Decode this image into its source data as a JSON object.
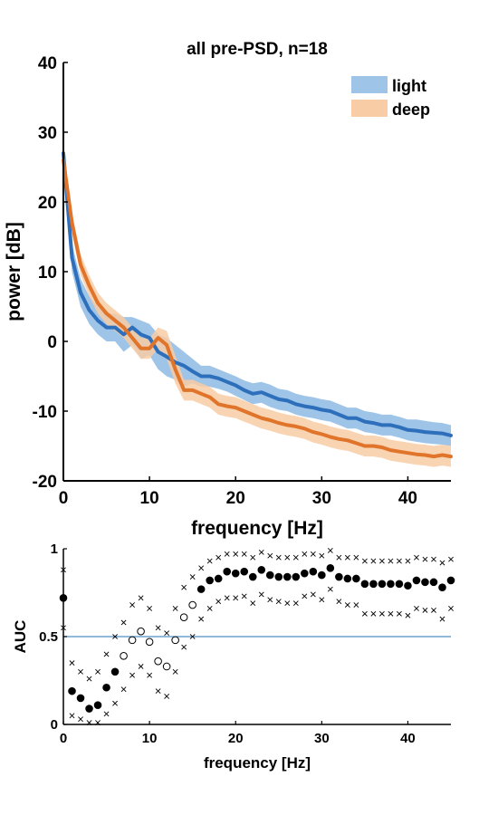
{
  "chart_data": [
    {
      "type": "line",
      "title": "all pre-PSD, n=18",
      "xlabel": "frequency [Hz]",
      "ylabel": "power [dB]",
      "xlim": [
        0,
        45
      ],
      "ylim": [
        -20,
        40
      ],
      "xticks": [
        "0",
        "10",
        "20",
        "30",
        "40"
      ],
      "yticks": [
        "-20",
        "-10",
        "0",
        "10",
        "20",
        "30",
        "40"
      ],
      "grid": false,
      "legend_position": "top-right",
      "x": [
        0,
        1,
        2,
        3,
        4,
        5,
        6,
        7,
        8,
        9,
        10,
        11,
        12,
        13,
        14,
        15,
        16,
        17,
        18,
        19,
        20,
        21,
        22,
        23,
        24,
        25,
        26,
        27,
        28,
        29,
        30,
        31,
        32,
        33,
        34,
        35,
        36,
        37,
        38,
        39,
        40,
        41,
        42,
        43,
        44,
        45
      ],
      "series": [
        {
          "name": "light",
          "line_color": "#2e6fbb",
          "band_color": "#9ec4e8",
          "values": [
            27,
            12,
            7,
            4.5,
            3,
            2,
            2,
            1,
            2,
            1,
            0.5,
            -1.5,
            -2.2,
            -3,
            -3.5,
            -4.3,
            -5,
            -5,
            -5.3,
            -5.8,
            -6.3,
            -7,
            -7.5,
            -7.3,
            -7.8,
            -8.3,
            -8.5,
            -9,
            -9.3,
            -9.5,
            -9.8,
            -10,
            -10.5,
            -11,
            -11,
            -11.5,
            -11.7,
            -12,
            -12,
            -12.3,
            -12.7,
            -12.8,
            -13,
            -13.1,
            -13.2,
            -13.5
          ],
          "upper": [
            28,
            14,
            9,
            6.5,
            5,
            4,
            4,
            3.5,
            3.5,
            3,
            2.5,
            1,
            0.5,
            -0.5,
            -1.5,
            -2.5,
            -3.5,
            -3.5,
            -4,
            -4.5,
            -5,
            -5.6,
            -6,
            -5.8,
            -6.2,
            -6.8,
            -7,
            -7.5,
            -7.8,
            -8,
            -8.3,
            -8.5,
            -9,
            -9.5,
            -9.5,
            -10,
            -10.2,
            -10.5,
            -10.5,
            -10.8,
            -11.2,
            -11.2,
            -11.4,
            -11.6,
            -11.7,
            -12
          ],
          "lower": [
            26,
            10,
            5,
            2.5,
            1,
            0,
            0,
            -1.5,
            -0.5,
            -2.5,
            -2,
            -4,
            -5,
            -5.5,
            -6.5,
            -6,
            -6.5,
            -6.5,
            -6.8,
            -7.2,
            -7.8,
            -8.4,
            -9,
            -8.8,
            -9.4,
            -9.8,
            -10,
            -10.5,
            -10.8,
            -11,
            -11.3,
            -11.5,
            -12,
            -12.5,
            -12.5,
            -13,
            -13.2,
            -13.5,
            -13.5,
            -13.8,
            -14.2,
            -14.4,
            -14.6,
            -14.7,
            -14.8,
            -15
          ]
        },
        {
          "name": "deep",
          "line_color": "#e0742a",
          "band_color": "#f8cca5",
          "values": [
            26,
            17,
            11,
            8,
            5.5,
            4,
            3,
            2,
            0.5,
            -1,
            -1,
            0.5,
            -0.5,
            -4,
            -7,
            -7,
            -7.5,
            -8,
            -9,
            -9.3,
            -9.5,
            -10,
            -10.5,
            -11,
            -11.3,
            -11.7,
            -12,
            -12.2,
            -12.5,
            -13,
            -13.3,
            -13.7,
            -14,
            -14.2,
            -14.6,
            -15,
            -15,
            -15.2,
            -15.6,
            -15.8,
            -16,
            -16.2,
            -16.3,
            -16.5,
            -16.3,
            -16.5
          ],
          "upper": [
            27,
            18.5,
            12.5,
            9.5,
            7,
            5.5,
            4.5,
            3.5,
            2,
            0.5,
            0.5,
            2,
            1.5,
            -2,
            -5.5,
            -5.5,
            -6,
            -6.5,
            -7.5,
            -7.8,
            -8,
            -8.5,
            -9,
            -9.5,
            -9.8,
            -10.2,
            -10.5,
            -10.7,
            -11,
            -11.5,
            -11.8,
            -12.2,
            -12.5,
            -12.7,
            -13.1,
            -13.5,
            -13.5,
            -13.7,
            -14.1,
            -14.3,
            -14.5,
            -14.7,
            -14.8,
            -15,
            -14.8,
            -15
          ],
          "lower": [
            25,
            15.5,
            9.5,
            6.5,
            4,
            2.5,
            1.5,
            0.5,
            -1,
            -2.5,
            -2.5,
            -1,
            -2.5,
            -6,
            -8.5,
            -8.5,
            -9,
            -9.5,
            -10.5,
            -10.8,
            -11,
            -11.5,
            -12,
            -12.5,
            -12.8,
            -13.2,
            -13.5,
            -13.7,
            -14,
            -14.5,
            -14.8,
            -15.2,
            -15.5,
            -15.7,
            -16.1,
            -16.5,
            -16.5,
            -16.7,
            -17.1,
            -17.3,
            -17.5,
            -17.7,
            -17.8,
            -18,
            -17.8,
            -18
          ]
        }
      ]
    },
    {
      "type": "scatter",
      "title": "",
      "xlabel": "frequency [Hz]",
      "ylabel": "AUC",
      "xlim": [
        0,
        45
      ],
      "ylim": [
        0,
        1
      ],
      "xticks": [
        "0",
        "10",
        "20",
        "30",
        "40"
      ],
      "yticks": [
        "0",
        "0.5",
        "1"
      ],
      "grid": false,
      "reference_line": {
        "y": 0.5,
        "color": "#4d8fc4"
      },
      "x": [
        0,
        1,
        2,
        3,
        4,
        5,
        6,
        7,
        8,
        9,
        10,
        11,
        12,
        13,
        14,
        15,
        16,
        17,
        18,
        19,
        20,
        21,
        22,
        23,
        24,
        25,
        26,
        27,
        28,
        29,
        30,
        31,
        32,
        33,
        34,
        35,
        36,
        37,
        38,
        39,
        40,
        41,
        42,
        43,
        44,
        45
      ],
      "auc": [
        0.72,
        0.19,
        0.15,
        0.09,
        0.11,
        0.21,
        0.3,
        0.39,
        0.48,
        0.53,
        0.47,
        0.36,
        0.33,
        0.48,
        0.61,
        0.68,
        0.77,
        0.82,
        0.83,
        0.87,
        0.86,
        0.87,
        0.84,
        0.88,
        0.85,
        0.84,
        0.84,
        0.84,
        0.86,
        0.87,
        0.85,
        0.89,
        0.84,
        0.83,
        0.83,
        0.8,
        0.8,
        0.8,
        0.8,
        0.8,
        0.79,
        0.82,
        0.81,
        0.81,
        0.78,
        0.82
      ],
      "significant": [
        true,
        true,
        true,
        true,
        true,
        true,
        true,
        false,
        false,
        false,
        false,
        false,
        false,
        false,
        false,
        false,
        true,
        true,
        true,
        true,
        true,
        true,
        true,
        true,
        true,
        true,
        true,
        true,
        true,
        true,
        true,
        true,
        true,
        true,
        true,
        true,
        true,
        true,
        true,
        true,
        true,
        true,
        true,
        true,
        true,
        true
      ],
      "ci_upper": [
        0.88,
        0.35,
        0.3,
        0.26,
        0.3,
        0.4,
        0.5,
        0.58,
        0.68,
        0.72,
        0.66,
        0.55,
        0.52,
        0.66,
        0.78,
        0.84,
        0.89,
        0.93,
        0.95,
        0.97,
        0.97,
        0.97,
        0.95,
        0.98,
        0.96,
        0.95,
        0.95,
        0.95,
        0.97,
        0.97,
        0.96,
        0.99,
        0.95,
        0.95,
        0.95,
        0.93,
        0.93,
        0.93,
        0.93,
        0.93,
        0.93,
        0.95,
        0.94,
        0.94,
        0.92,
        0.94
      ],
      "ci_lower": [
        0.55,
        0.05,
        0.03,
        0.01,
        0.01,
        0.06,
        0.12,
        0.2,
        0.28,
        0.33,
        0.28,
        0.19,
        0.16,
        0.3,
        0.44,
        0.5,
        0.6,
        0.66,
        0.7,
        0.72,
        0.72,
        0.73,
        0.69,
        0.74,
        0.71,
        0.7,
        0.69,
        0.69,
        0.73,
        0.74,
        0.71,
        0.77,
        0.7,
        0.68,
        0.68,
        0.63,
        0.63,
        0.63,
        0.63,
        0.63,
        0.62,
        0.66,
        0.65,
        0.65,
        0.6,
        0.66
      ]
    }
  ]
}
